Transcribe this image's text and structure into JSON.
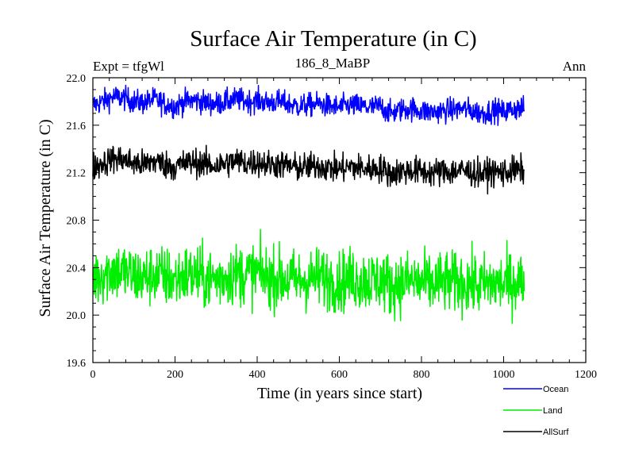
{
  "chart_data": {
    "type": "line",
    "title": "Surface Air Temperature (in C)",
    "subtitle_left": "Expt = tfgWl",
    "subtitle_center": "186_8_MaBP",
    "subtitle_right": "Ann",
    "xlabel": "Time (in years since start)",
    "ylabel": "Surface Air Temperature (in C)",
    "xlim": [
      0,
      1200
    ],
    "ylim": [
      19.6,
      22.0
    ],
    "xticks": [
      0,
      200,
      400,
      600,
      800,
      1000,
      1200
    ],
    "xtick_labels": [
      "0",
      "200",
      "400",
      "600",
      "800",
      "1000",
      "1200"
    ],
    "yticks": [
      19.6,
      20.0,
      20.4,
      20.8,
      21.2,
      21.6,
      22.0
    ],
    "ytick_labels": [
      "19.6",
      "20.0",
      "20.4",
      "20.8",
      "21.2",
      "21.6",
      "22.0"
    ],
    "x_range": [
      0,
      1050
    ],
    "legend_position": "bottom-right, outside plot",
    "series": [
      {
        "name": "Ocean",
        "color": "#0000ff",
        "x_step": 25,
        "approx_annual_noise": 0.05,
        "values": [
          21.77,
          21.8,
          21.84,
          21.83,
          21.8,
          21.79,
          21.82,
          21.78,
          21.76,
          21.8,
          21.81,
          21.79,
          21.78,
          21.8,
          21.82,
          21.8,
          21.81,
          21.79,
          21.8,
          21.78,
          21.76,
          21.77,
          21.78,
          21.76,
          21.75,
          21.77,
          21.76,
          21.75,
          21.76,
          21.7,
          21.73,
          21.74,
          21.72,
          21.71,
          21.72,
          21.73,
          21.74,
          21.72,
          21.7,
          21.73,
          21.71,
          21.74,
          21.74
        ]
      },
      {
        "name": "Land",
        "color": "#00ee00",
        "x_step": 25,
        "approx_annual_noise": 0.13,
        "values": [
          20.32,
          20.35,
          20.38,
          20.36,
          20.33,
          20.31,
          20.35,
          20.32,
          20.3,
          20.34,
          20.33,
          20.31,
          20.3,
          20.33,
          20.35,
          20.34,
          20.36,
          20.32,
          20.31,
          20.3,
          20.29,
          20.3,
          20.32,
          20.3,
          20.28,
          20.31,
          20.3,
          20.29,
          20.3,
          20.25,
          20.27,
          20.29,
          20.27,
          20.26,
          20.28,
          20.27,
          20.28,
          20.26,
          20.25,
          20.27,
          20.26,
          20.28,
          20.28
        ]
      },
      {
        "name": "AllSurf",
        "color": "#000000",
        "x_step": 25,
        "approx_annual_noise": 0.06,
        "values": [
          21.25,
          21.28,
          21.32,
          21.31,
          21.28,
          21.27,
          21.3,
          21.27,
          21.25,
          21.28,
          21.29,
          21.27,
          21.26,
          21.28,
          21.3,
          21.28,
          21.29,
          21.27,
          21.27,
          21.26,
          21.24,
          21.25,
          21.26,
          21.24,
          21.23,
          21.25,
          21.24,
          21.23,
          21.24,
          21.19,
          21.21,
          21.22,
          21.21,
          21.2,
          21.21,
          21.21,
          21.22,
          21.2,
          21.19,
          21.21,
          21.2,
          21.22,
          21.22
        ]
      }
    ]
  }
}
